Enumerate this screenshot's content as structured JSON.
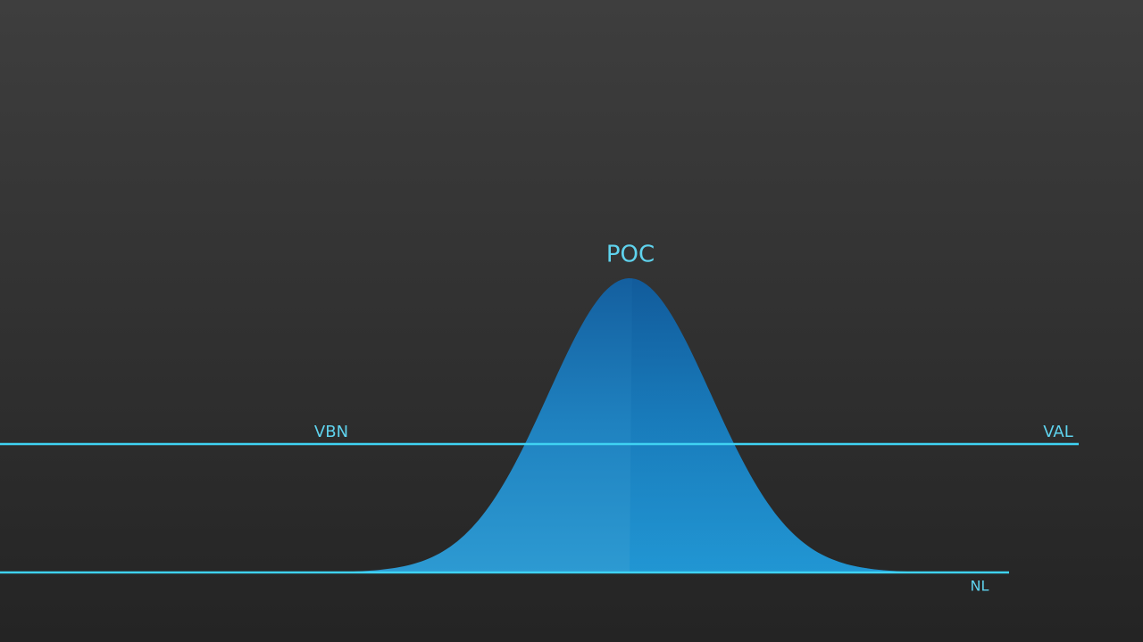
{
  "labels": {
    "peak": "POC",
    "upper_left": "VBN",
    "upper_right": "VAL",
    "baseline": "NL"
  }
}
